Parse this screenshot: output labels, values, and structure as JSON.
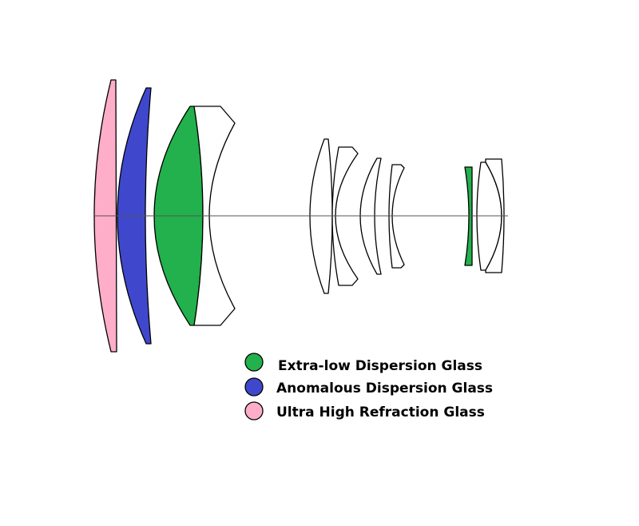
{
  "colors": {
    "extra_low_dispersion": "#22b14c",
    "anomalous_dispersion": "#3f48cc",
    "ultra_high_refraction": "#ffaec9",
    "standard": "#ffffff"
  },
  "lens_elements": [
    {
      "index": 1,
      "glass": "ultra_high_refraction"
    },
    {
      "index": 2,
      "glass": "anomalous_dispersion"
    },
    {
      "index": 3,
      "glass": "extra_low_dispersion"
    },
    {
      "index": 4,
      "glass": "standard"
    },
    {
      "index": 5,
      "glass": "standard"
    },
    {
      "index": 6,
      "glass": "standard"
    },
    {
      "index": 7,
      "glass": "standard"
    },
    {
      "index": 8,
      "glass": "standard"
    },
    {
      "index": 9,
      "glass": "extra_low_dispersion"
    },
    {
      "index": 10,
      "glass": "standard"
    },
    {
      "index": 11,
      "glass": "standard"
    }
  ],
  "legend": {
    "items": [
      {
        "label": "Extra-low Dispersion Glass",
        "glass": "extra_low_dispersion"
      },
      {
        "label": "Anomalous Dispersion Glass",
        "glass": "anomalous_dispersion"
      },
      {
        "label": "Ultra High Refraction Glass",
        "glass": "ultra_high_refraction"
      }
    ]
  }
}
